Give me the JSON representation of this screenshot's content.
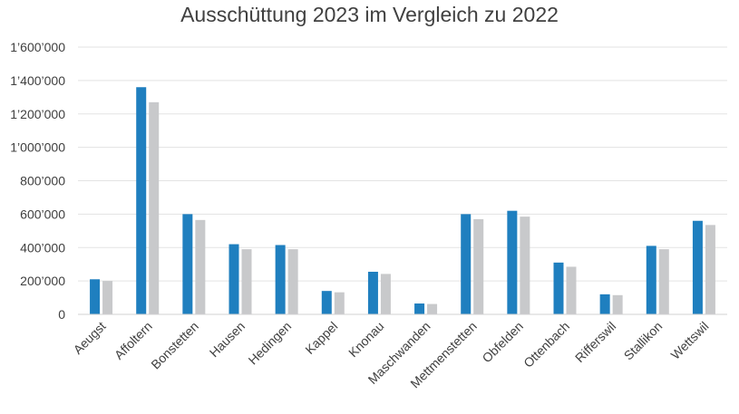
{
  "chart_data": {
    "type": "bar",
    "title": "Ausschüttung 2023 im Vergleich zu 2022",
    "xlabel": "",
    "ylabel": "",
    "categories": [
      "Aeugst",
      "Affoltern",
      "Bonstetten",
      "Hausen",
      "Hedingen",
      "Kappel",
      "Knonau",
      "Maschwanden",
      "Mettmenstetten",
      "Obfelden",
      "Ottenbach",
      "Rifferswil",
      "Stallikon",
      "Wettswil"
    ],
    "series": [
      {
        "values": [
          210000,
          1360000,
          600000,
          420000,
          415000,
          140000,
          255000,
          65000,
          600000,
          620000,
          310000,
          120000,
          410000,
          560000
        ],
        "color": "#1f7fbf"
      },
      {
        "values": [
          200000,
          1270000,
          565000,
          390000,
          390000,
          132000,
          242000,
          62000,
          570000,
          585000,
          285000,
          115000,
          390000,
          535000
        ],
        "color": "#c8c9cb"
      }
    ],
    "ylim": [
      0,
      1600000
    ],
    "yticks": [
      0,
      200000,
      400000,
      600000,
      800000,
      1000000,
      1200000,
      1400000,
      1600000
    ],
    "ytick_labels": [
      "0",
      "200’000",
      "400’000",
      "600’000",
      "800’000",
      "1’000’000",
      "1’200’000",
      "1’400’000",
      "1’600’000"
    ],
    "grid": true,
    "legend": "none"
  }
}
